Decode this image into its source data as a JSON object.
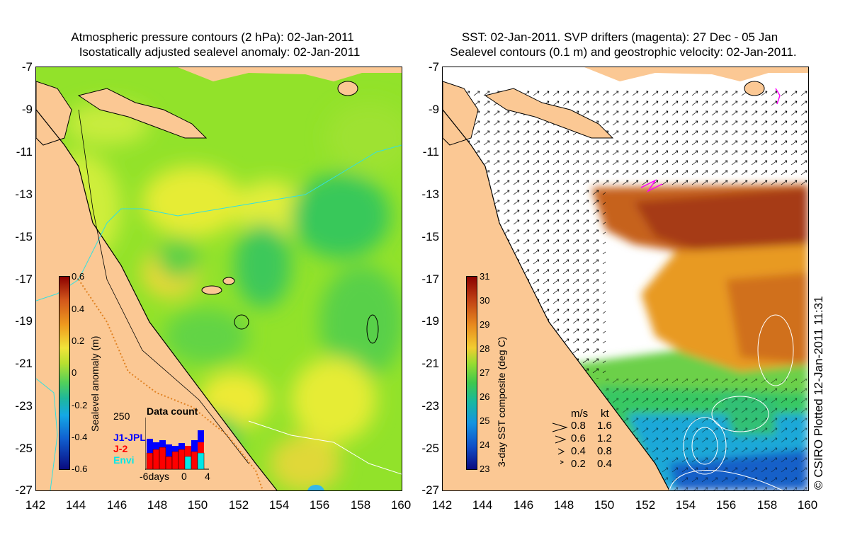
{
  "left_panel": {
    "title_line1": "Atmospheric pressure contours (2 hPa): 02-Jan-2011",
    "title_line2": "Isostatically adjusted sealevel anomaly: 02-Jan-2011",
    "colorbar": {
      "title": "Sealevel anomaly (m)",
      "ticks": [
        "0.6",
        "0.4",
        "0.2",
        "0",
        "-0.2",
        "-0.4",
        "-0.6"
      ]
    },
    "inset": {
      "max_label": "250",
      "title": "Data count",
      "series": [
        {
          "name": "J1-JPL",
          "color": "#0000ff"
        },
        {
          "name": "J-2",
          "color": "#ff0000"
        },
        {
          "name": "Envi",
          "color": "#00ffff"
        }
      ],
      "x_labels": [
        "-6days",
        "0",
        "4"
      ]
    }
  },
  "right_panel": {
    "title_line1": "SST: 02-Jan-2011. SVP drifters (magenta): 27 Dec - 05 Jan",
    "title_line2": "Sealevel contours (0.1 m) and geostrophic velocity: 02-Jan-2011.",
    "colorbar": {
      "title": "3-day SST composite (deg C)",
      "ticks": [
        "31",
        "30",
        "29",
        "28",
        "27",
        "26",
        "25",
        "24",
        "23"
      ]
    },
    "velocity_legend": {
      "header_ms": "m/s",
      "header_kt": "kt",
      "rows": [
        {
          "ms": "0.8",
          "kt": "1.6"
        },
        {
          "ms": "0.6",
          "kt": "1.2"
        },
        {
          "ms": "0.4",
          "kt": "0.8"
        },
        {
          "ms": "0.2",
          "kt": "0.4"
        }
      ]
    },
    "credit": "© CSIRO Plotted 12-Jan-2011 11:31"
  },
  "axes": {
    "y_ticks": [
      "-7",
      "-9",
      "-11",
      "-13",
      "-15",
      "-17",
      "-19",
      "-21",
      "-23",
      "-25",
      "-27"
    ],
    "x_ticks": [
      "142",
      "144",
      "146",
      "148",
      "150",
      "152",
      "154",
      "156",
      "158",
      "160"
    ]
  },
  "colors": {
    "land": "#fbc894",
    "ssh_base": "#92e22a",
    "white": "#ffffff"
  }
}
